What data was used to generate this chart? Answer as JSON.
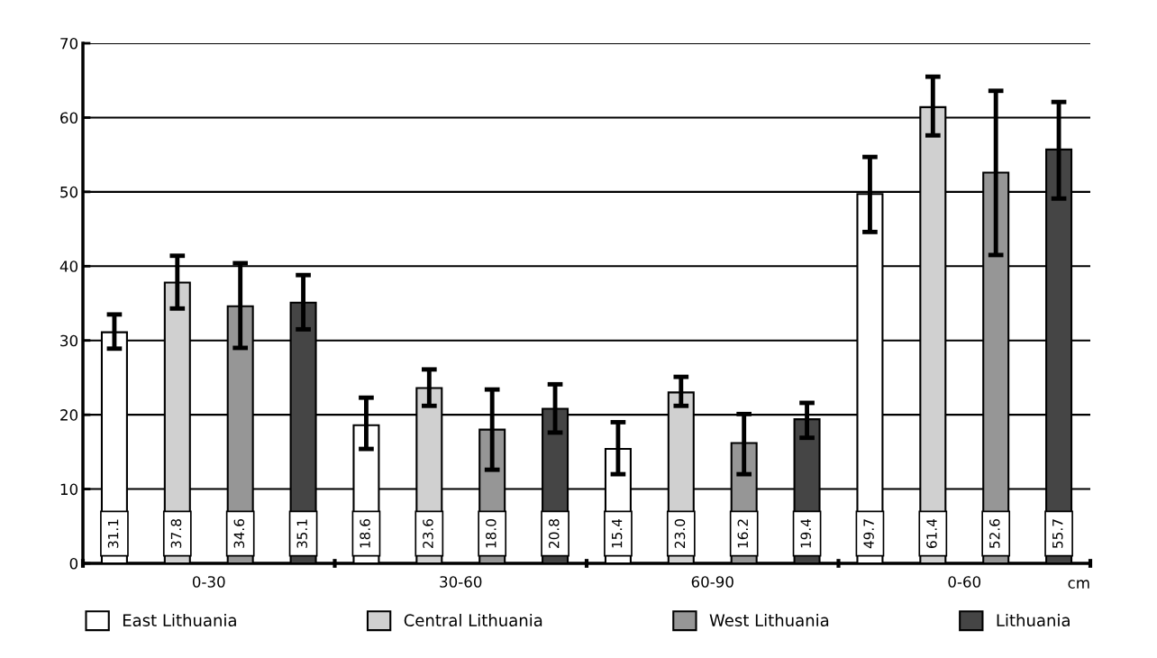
{
  "chart_data": {
    "type": "bar",
    "categories": [
      "0-30",
      "30-60",
      "60-90",
      "0-60"
    ],
    "series": [
      {
        "name": "East Lithuania",
        "color": "#ffffff",
        "values": [
          31.1,
          18.6,
          15.4,
          49.7
        ],
        "value_labels": [
          "31.1",
          "18.6",
          "15.4",
          "49.7"
        ],
        "errors": [
          [
            28.9,
            33.5
          ],
          [
            15.4,
            22.3
          ],
          [
            12.0,
            19.0
          ],
          [
            44.6,
            54.7
          ]
        ]
      },
      {
        "name": "Central Lithuania",
        "color": "#d0d0d0",
        "values": [
          37.8,
          23.6,
          23.0,
          61.4
        ],
        "value_labels": [
          "37.8",
          "23.6",
          "23.0",
          "61.4"
        ],
        "errors": [
          [
            34.3,
            41.4
          ],
          [
            21.2,
            26.1
          ],
          [
            21.2,
            25.1
          ],
          [
            57.6,
            65.5
          ]
        ]
      },
      {
        "name": "West Lithuania",
        "color": "#969696",
        "values": [
          34.6,
          18.0,
          16.2,
          52.6
        ],
        "value_labels": [
          "34.6",
          "18.0",
          "16.2",
          "52.6"
        ],
        "errors": [
          [
            29.0,
            40.4
          ],
          [
            12.6,
            23.4
          ],
          [
            12.0,
            20.1
          ],
          [
            41.5,
            63.6
          ]
        ]
      },
      {
        "name": "Lithuania",
        "color": "#454545",
        "values": [
          35.1,
          20.8,
          19.4,
          55.7
        ],
        "value_labels": [
          "35.1",
          "20.8",
          "19.4",
          "55.7"
        ],
        "errors": [
          [
            31.5,
            38.8
          ],
          [
            17.6,
            24.1
          ],
          [
            16.9,
            21.6
          ],
          [
            49.1,
            62.1
          ]
        ]
      }
    ],
    "ylim": [
      0,
      70
    ],
    "yticks": [
      0,
      10,
      20,
      30,
      40,
      50,
      60,
      70
    ],
    "grid": "y",
    "legend": "bottom",
    "annotations": [
      "cm"
    ]
  }
}
